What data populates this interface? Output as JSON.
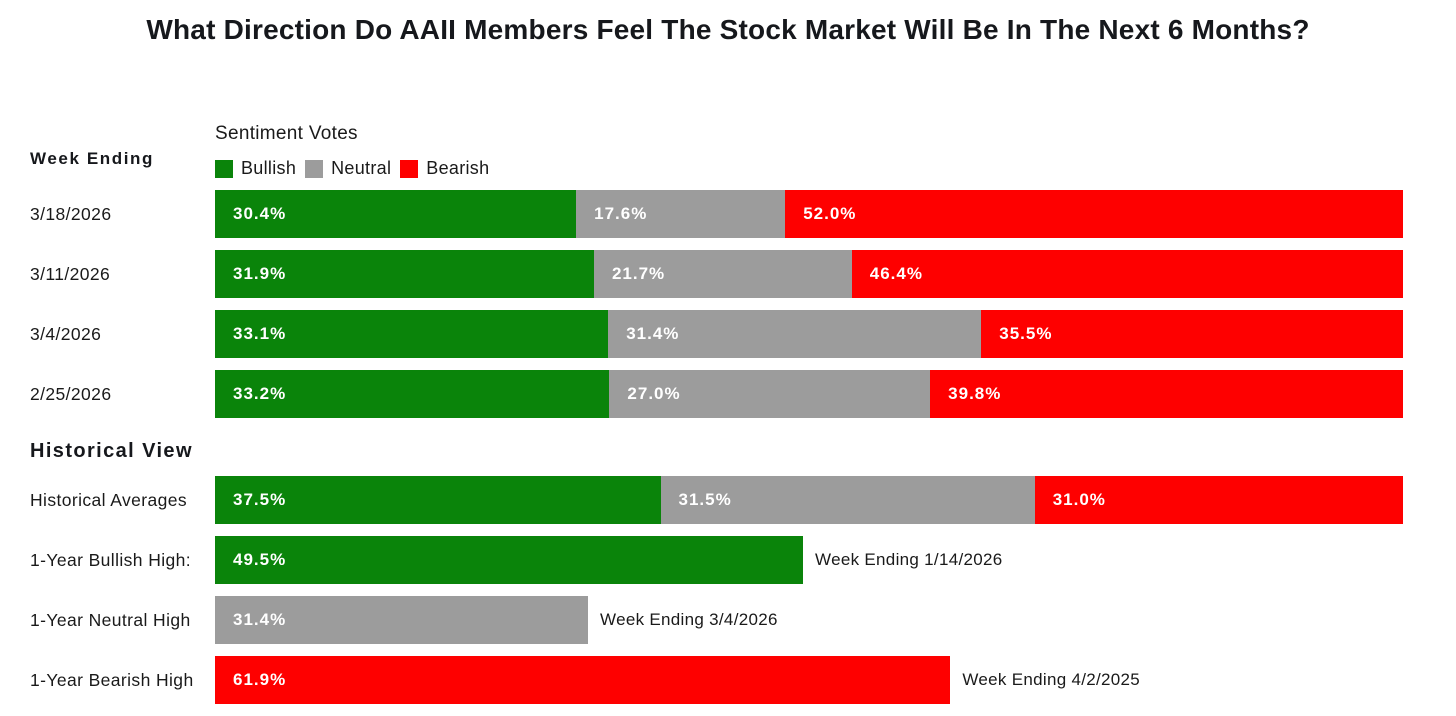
{
  "title": "What Direction Do AAII Members Feel The Stock Market Will Be In The Next 6 Months?",
  "colors": {
    "bullish": "#0a840a",
    "neutral": "#9c9c9c",
    "bearish": "#fe0000",
    "text_dark": "#1a1a1a",
    "title_dark": "#16181c",
    "bar_label_white": "#ffffff"
  },
  "legend": {
    "title": "Sentiment Votes",
    "items": [
      {
        "label": "Bullish",
        "color": "#0a840a"
      },
      {
        "label": "Neutral",
        "color": "#9c9c9c"
      },
      {
        "label": "Bearish",
        "color": "#fe0000"
      }
    ]
  },
  "sections": {
    "week_heading": "Week Ending",
    "historical_heading": "Historical View"
  },
  "chart_data": {
    "type": "bar",
    "subtype": "horizontal-stacked",
    "title": "What Direction Do AAII Members Feel The Stock Market Will Be In The Next 6 Months?",
    "legend_title": "Sentiment Votes",
    "series_names": [
      "Bullish",
      "Neutral",
      "Bearish"
    ],
    "series_colors": [
      "#0a840a",
      "#9c9c9c",
      "#fe0000"
    ],
    "xlim": [
      0,
      100
    ],
    "grid": false,
    "legend_position": "top-left of plot area",
    "week_rows": [
      {
        "category": "3/18/2026",
        "bullish": 30.4,
        "neutral": 17.6,
        "bearish": 52.0,
        "bullish_label": "30.4%",
        "neutral_label": "17.6%",
        "bearish_label": "52.0%"
      },
      {
        "category": "3/11/2026",
        "bullish": 31.9,
        "neutral": 21.7,
        "bearish": 46.4,
        "bullish_label": "31.9%",
        "neutral_label": "21.7%",
        "bearish_label": "46.4%"
      },
      {
        "category": "3/4/2026",
        "bullish": 33.1,
        "neutral": 31.4,
        "bearish": 35.5,
        "bullish_label": "33.1%",
        "neutral_label": "31.4%",
        "bearish_label": "35.5%"
      },
      {
        "category": "2/25/2026",
        "bullish": 33.2,
        "neutral": 27.0,
        "bearish": 39.8,
        "bullish_label": "33.2%",
        "neutral_label": "27.0%",
        "bearish_label": "39.8%"
      }
    ],
    "historical_average_row": {
      "category": "Historical Averages",
      "bullish": 37.5,
      "neutral": 31.5,
      "bearish": 31.0,
      "bullish_label": "37.5%",
      "neutral_label": "31.5%",
      "bearish_label": "31.0%"
    },
    "historical_single_rows": [
      {
        "category": "1-Year Bullish High:",
        "series": "Bullish",
        "value": 49.5,
        "value_label": "49.5%",
        "annotation": "Week Ending 1/14/2026"
      },
      {
        "category": "1-Year Neutral High",
        "series": "Neutral",
        "value": 31.4,
        "value_label": "31.4%",
        "annotation": "Week Ending 3/4/2026"
      },
      {
        "category": "1-Year Bearish High",
        "series": "Bearish",
        "value": 61.9,
        "value_label": "61.9%",
        "annotation": "Week Ending 4/2/2025"
      }
    ]
  }
}
